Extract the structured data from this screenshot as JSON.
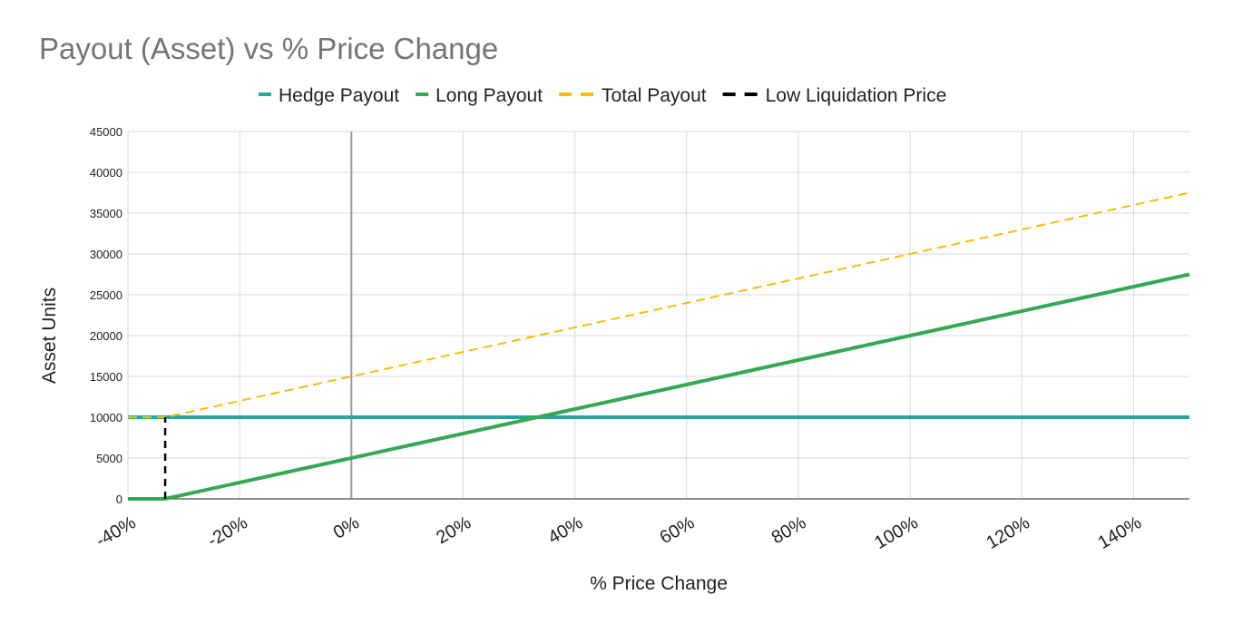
{
  "chart_data": {
    "type": "line",
    "title": "Payout (Asset) vs % Price Change",
    "xlabel": "% Price Change",
    "ylabel": "Asset Units",
    "xlim": [
      -40,
      150
    ],
    "ylim": [
      0,
      45000
    ],
    "x_ticks": [
      -40,
      -20,
      0,
      20,
      40,
      60,
      80,
      100,
      120,
      140
    ],
    "x_tick_labels": [
      "-40%",
      "-20%",
      "0%",
      "20%",
      "40%",
      "60%",
      "80%",
      "100%",
      "120%",
      "140%"
    ],
    "y_ticks": [
      0,
      5000,
      10000,
      15000,
      20000,
      25000,
      30000,
      35000,
      40000,
      45000
    ],
    "y_tick_labels": [
      "0",
      "5000",
      "10000",
      "15000",
      "20000",
      "25000",
      "30000",
      "35000",
      "40000",
      "45000"
    ],
    "grid": true,
    "legend_position": "top",
    "series": [
      {
        "name": "Hedge Payout",
        "color": "#26a69a",
        "style": "solid",
        "x": [
          -40,
          150
        ],
        "y": [
          10000,
          10000
        ]
      },
      {
        "name": "Long Payout",
        "color": "#34a853",
        "style": "solid",
        "x": [
          -40,
          -33.33,
          150
        ],
        "y": [
          0,
          0,
          27500
        ]
      },
      {
        "name": "Total Payout",
        "color": "#fbbc04",
        "style": "dashed",
        "x": [
          -40,
          -33.33,
          150
        ],
        "y": [
          10000,
          10000,
          37500
        ]
      },
      {
        "name": "Low Liquidation Price",
        "color": "#000000",
        "style": "dashed",
        "x": [
          -33.33,
          -33.33
        ],
        "y": [
          0,
          10000
        ]
      }
    ]
  }
}
